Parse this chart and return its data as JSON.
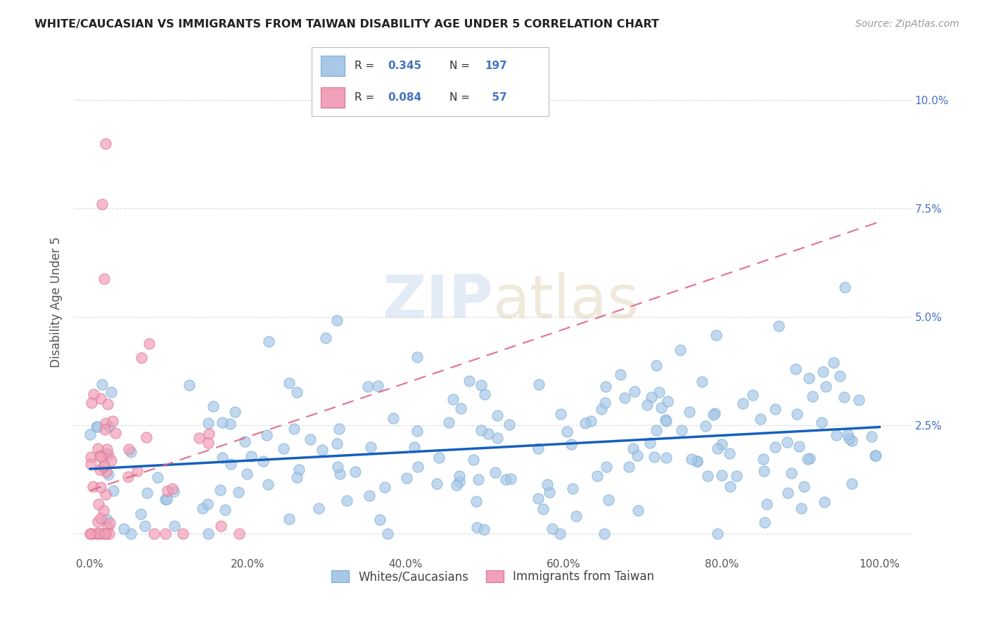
{
  "title": "WHITE/CAUCASIAN VS IMMIGRANTS FROM TAIWAN DISABILITY AGE UNDER 5 CORRELATION CHART",
  "source": "Source: ZipAtlas.com",
  "ylabel": "Disability Age Under 5",
  "blue_R": 0.345,
  "blue_N": 197,
  "pink_R": 0.084,
  "pink_N": 57,
  "blue_color": "#A8C8E8",
  "pink_color": "#F0A0B8",
  "blue_edge_color": "#7AADD4",
  "pink_edge_color": "#E07090",
  "blue_line_color": "#1560BD",
  "pink_line_color": "#E06080",
  "watermark_color": "#C8D8F0",
  "background_color": "#ffffff",
  "grid_color": "#dddddd",
  "right_tick_color": "#4472C4",
  "x_tick_positions": [
    0,
    20,
    40,
    60,
    80,
    100
  ],
  "x_tick_labels": [
    "0.0%",
    "20.0%",
    "40.0%",
    "60.0%",
    "80.0%",
    "100.0%"
  ],
  "y_tick_positions": [
    0,
    2.5,
    5.0,
    7.5,
    10.0
  ],
  "y_tick_labels": [
    "",
    "2.5%",
    "5.0%",
    "7.5%",
    "10.0%"
  ],
  "xlim": [
    -2,
    104
  ],
  "ylim": [
    -0.5,
    11.2
  ]
}
